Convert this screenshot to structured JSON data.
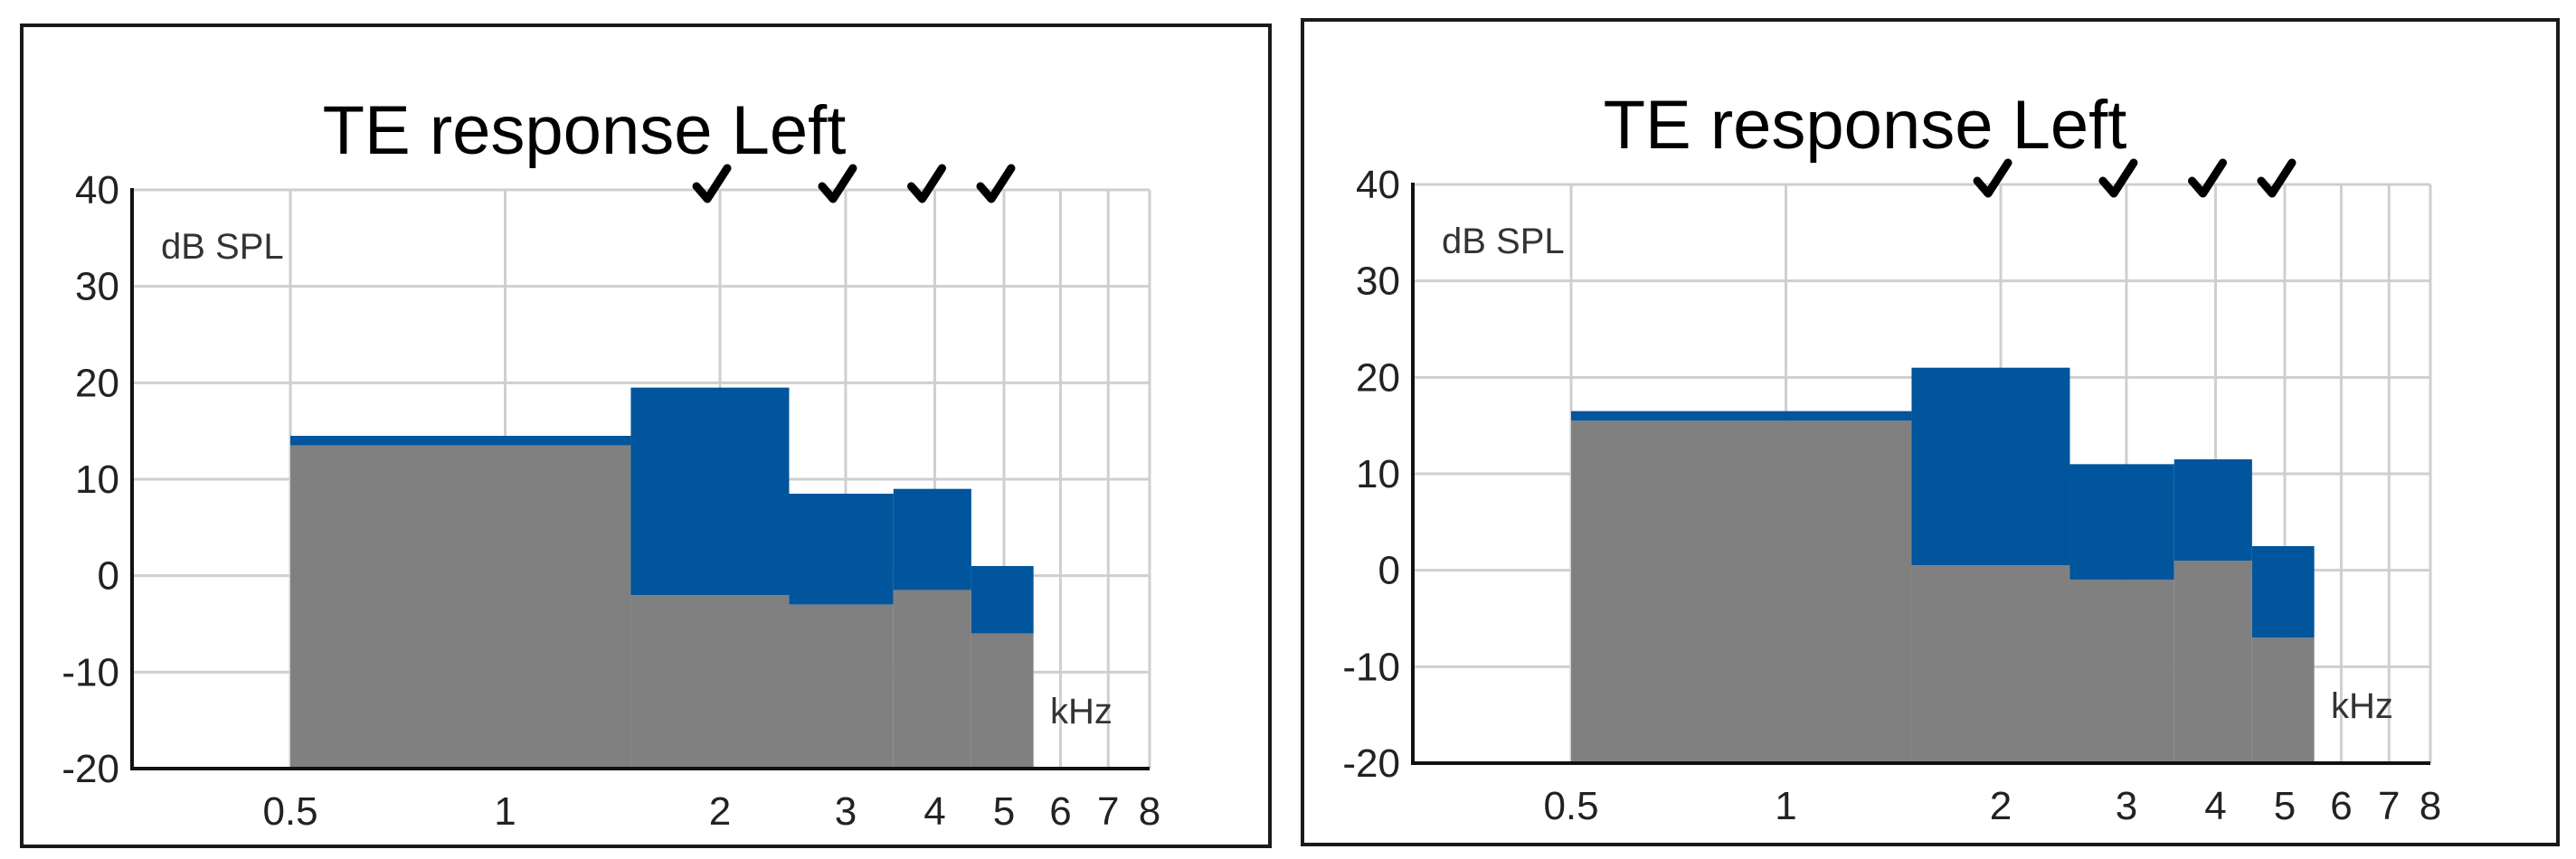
{
  "chart_data": [
    {
      "type": "area",
      "title": "TE response Left",
      "ylabel": "dB SPL",
      "xlabel": "kHz",
      "ylim": [
        -20,
        40
      ],
      "xlim": [
        0.3,
        8
      ],
      "x_scale": "log",
      "y_ticks": [
        "40",
        "30",
        "20",
        "10",
        "0",
        "-10",
        "-20"
      ],
      "x_ticks": [
        "0.5",
        "1",
        "2",
        "3",
        "4",
        "5",
        "6",
        "7",
        "8"
      ],
      "checkmarks_at_khz": [
        2,
        3,
        4,
        5
      ],
      "grid": true,
      "bands": [
        {
          "x_start": 0.5,
          "x_end": 1.5,
          "noise": 13.5,
          "response": 14.5
        },
        {
          "x_start": 1.5,
          "x_end": 2.5,
          "noise": -2,
          "response": 19.5
        },
        {
          "x_start": 2.5,
          "x_end": 3.5,
          "noise": -3,
          "response": 8.5
        },
        {
          "x_start": 3.5,
          "x_end": 4.5,
          "noise": -1.5,
          "response": 9
        },
        {
          "x_start": 4.5,
          "x_end": 5.5,
          "noise": -6,
          "response": 1
        }
      ],
      "colors": {
        "noise": "#808080",
        "response": "#00559c"
      }
    },
    {
      "type": "area",
      "title": "TE response Left",
      "ylabel": "dB SPL",
      "xlabel": "kHz",
      "ylim": [
        -20,
        40
      ],
      "xlim": [
        0.3,
        8
      ],
      "x_scale": "log",
      "y_ticks": [
        "40",
        "30",
        "20",
        "10",
        "0",
        "-10",
        "-20"
      ],
      "x_ticks": [
        "0.5",
        "1",
        "2",
        "3",
        "4",
        "5",
        "6",
        "7",
        "8"
      ],
      "checkmarks_at_khz": [
        2,
        3,
        4,
        5
      ],
      "grid": true,
      "bands": [
        {
          "x_start": 0.5,
          "x_end": 1.5,
          "noise": 15.5,
          "response": 16.5
        },
        {
          "x_start": 1.5,
          "x_end": 2.5,
          "noise": 0.5,
          "response": 21
        },
        {
          "x_start": 2.5,
          "x_end": 3.5,
          "noise": -1,
          "response": 11
        },
        {
          "x_start": 3.5,
          "x_end": 4.5,
          "noise": 1,
          "response": 11.5
        },
        {
          "x_start": 4.5,
          "x_end": 5.5,
          "noise": -7,
          "response": 2.5
        }
      ],
      "colors": {
        "noise": "#808080",
        "response": "#00559c"
      }
    }
  ]
}
